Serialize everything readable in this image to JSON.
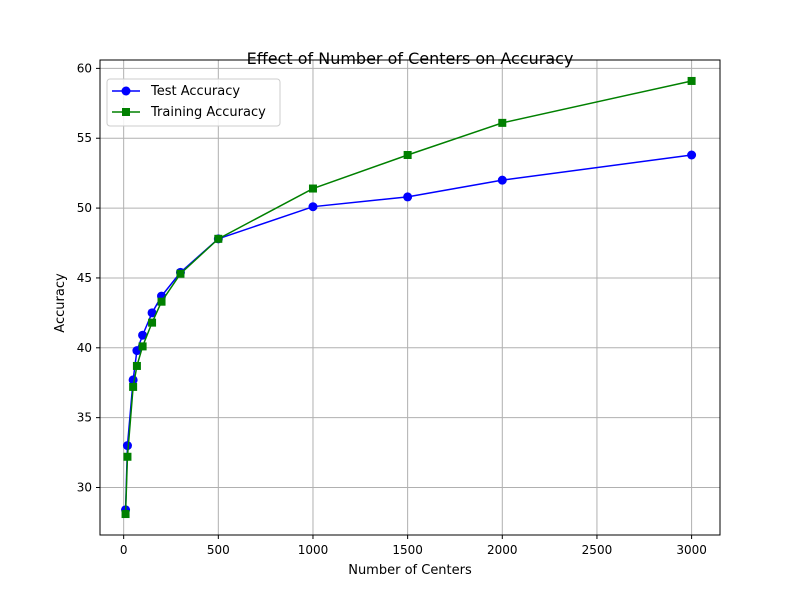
{
  "chart_data": {
    "type": "line",
    "title": "Effect of Number of Centers on Accuracy",
    "xlabel": "Number of Centers",
    "ylabel": "Accuracy",
    "xlim": [
      -125,
      3150
    ],
    "ylim": [
      26.6,
      60.6
    ],
    "xticks": [
      0,
      500,
      1000,
      1500,
      2000,
      2500,
      3000
    ],
    "yticks": [
      30,
      35,
      40,
      45,
      50,
      55,
      60
    ],
    "grid": true,
    "legend_position": "top-left",
    "series": [
      {
        "name": "Test Accuracy",
        "color": "#0000ff",
        "marker": "circle",
        "x": [
          10,
          20,
          50,
          70,
          100,
          150,
          200,
          300,
          500,
          1000,
          1500,
          2000,
          3000
        ],
        "y": [
          28.4,
          33.0,
          37.7,
          39.8,
          40.9,
          42.5,
          43.7,
          45.4,
          47.8,
          50.1,
          50.8,
          52.0,
          53.8
        ]
      },
      {
        "name": "Training Accuracy",
        "color": "#008000",
        "marker": "square",
        "x": [
          10,
          20,
          50,
          70,
          100,
          150,
          200,
          300,
          500,
          1000,
          1500,
          2000,
          3000
        ],
        "y": [
          28.1,
          32.2,
          37.2,
          38.7,
          40.1,
          41.8,
          43.3,
          45.3,
          47.8,
          51.4,
          53.8,
          56.1,
          59.1
        ]
      }
    ]
  }
}
